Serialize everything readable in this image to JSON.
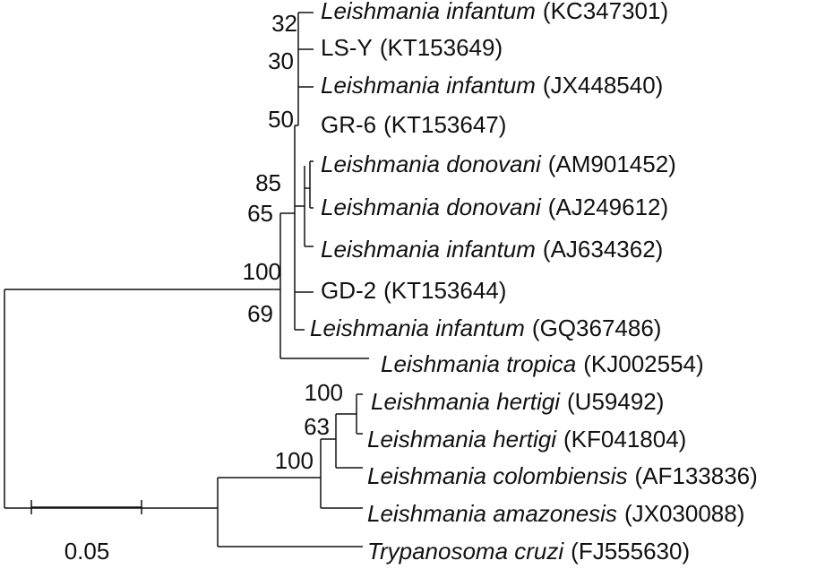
{
  "leaves": [
    {
      "species": "Leishmania infantum",
      "accession": "(KC347301)"
    },
    {
      "strain": "LS-Y",
      "accession": "(KT153649)"
    },
    {
      "species": "Leishmania infantum",
      "accession": "(JX448540)"
    },
    {
      "strain": "GR-6",
      "accession": "(KT153647)"
    },
    {
      "species": "Leishmania donovani",
      "accession": "(AM901452)"
    },
    {
      "species": "Leishmania donovani",
      "accession": "(AJ249612)"
    },
    {
      "species": "Leishmania infantum",
      "accession": "(AJ634362)"
    },
    {
      "strain": "GD-2",
      "accession": "(KT153644)"
    },
    {
      "species": "Leishmania infantum",
      "accession": "(GQ367486)"
    },
    {
      "species": "Leishmania tropica",
      "accession": "(KJ002554)"
    },
    {
      "species": "Leishmania hertigi",
      "accession": "(U59492)"
    },
    {
      "species": "Leishmania hertigi",
      "accession": "(KF041804)"
    },
    {
      "species": "Leishmania colombiensis",
      "accession": "(AF133836)"
    },
    {
      "species": "Leishmania amazonesis",
      "accession": "(JX030088)"
    },
    {
      "species": "Trypanosoma cruzi",
      "accession": "(FJ555630)"
    }
  ],
  "bootstrap": [
    32,
    30,
    50,
    85,
    65,
    100,
    69,
    100,
    63,
    100
  ],
  "scale": 0.05
}
